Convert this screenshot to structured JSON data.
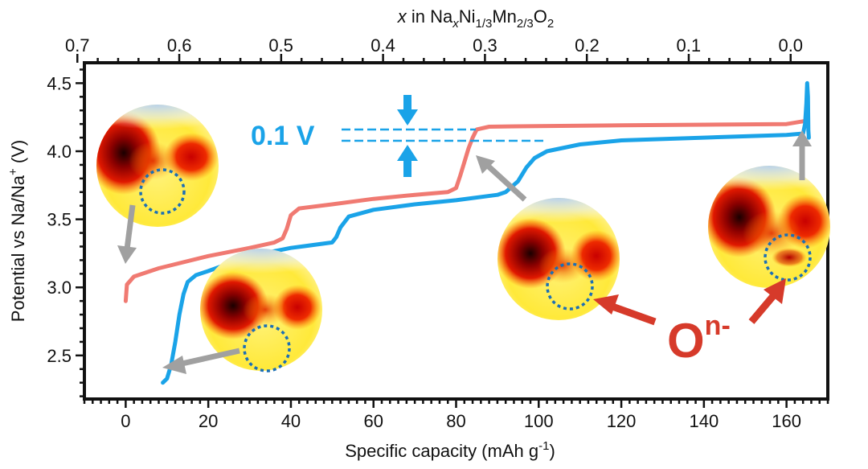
{
  "chart_data": {
    "type": "line",
    "xlabel": "Specific capacity (mAh g",
    "xlabel_sup": "-1",
    "xlabel_tail": ")",
    "ylabel_main": "Potential vs Na/Na",
    "ylabel_sup": "+",
    "ylabel_tail": " (V)",
    "top_label": {
      "x": "x",
      "pre": " in Na",
      "sub_x": "x",
      "ni": "Ni",
      "sub_ni": "1/3",
      "mn": "Mn",
      "sub_mn": "2/3",
      "o": "O",
      "sub_o": "2"
    },
    "xlim": [
      -10,
      170
    ],
    "ylim": [
      2.18,
      4.65
    ],
    "xticks": [
      0,
      20,
      40,
      60,
      80,
      100,
      120,
      140,
      160
    ],
    "yticks": [
      2.5,
      3.0,
      3.5,
      4.0,
      4.5
    ],
    "top_ticks": [
      {
        "label": "0.7",
        "capacity": -11.7
      },
      {
        "label": "0.6",
        "capacity": 13.0
      },
      {
        "label": "0.5",
        "capacity": 37.6
      },
      {
        "label": "0.4",
        "capacity": 62.3
      },
      {
        "label": "0.3",
        "capacity": 87.0
      },
      {
        "label": "0.2",
        "capacity": 111.7
      },
      {
        "label": "0.1",
        "capacity": 136.3
      },
      {
        "label": "0.0",
        "capacity": 161.0
      }
    ],
    "series": [
      {
        "color": "#f07a72",
        "points": [
          [
            0,
            2.9
          ],
          [
            0.3,
            3.02
          ],
          [
            2,
            3.08
          ],
          [
            8,
            3.14
          ],
          [
            20,
            3.23
          ],
          [
            30,
            3.29
          ],
          [
            36,
            3.33
          ],
          [
            38,
            3.36
          ],
          [
            39,
            3.43
          ],
          [
            40,
            3.53
          ],
          [
            42,
            3.58
          ],
          [
            50,
            3.61
          ],
          [
            60,
            3.65
          ],
          [
            70,
            3.68
          ],
          [
            78,
            3.7
          ],
          [
            80,
            3.73
          ],
          [
            81,
            3.82
          ],
          [
            82,
            3.92
          ],
          [
            83,
            4.02
          ],
          [
            84,
            4.1
          ],
          [
            85,
            4.16
          ],
          [
            88,
            4.18
          ],
          [
            100,
            4.185
          ],
          [
            120,
            4.19
          ],
          [
            140,
            4.195
          ],
          [
            160,
            4.2
          ],
          [
            164,
            4.22
          ]
        ]
      },
      {
        "color": "#1aa3e8",
        "points": [
          [
            9,
            2.3
          ],
          [
            10,
            2.33
          ],
          [
            11,
            2.43
          ],
          [
            12,
            2.6
          ],
          [
            13,
            2.8
          ],
          [
            14,
            2.95
          ],
          [
            15,
            3.04
          ],
          [
            17,
            3.09
          ],
          [
            20,
            3.12
          ],
          [
            30,
            3.23
          ],
          [
            40,
            3.29
          ],
          [
            50,
            3.33
          ],
          [
            51,
            3.37
          ],
          [
            52,
            3.44
          ],
          [
            54,
            3.52
          ],
          [
            60,
            3.57
          ],
          [
            70,
            3.61
          ],
          [
            80,
            3.64
          ],
          [
            90,
            3.68
          ],
          [
            92,
            3.7
          ],
          [
            95,
            3.78
          ],
          [
            97,
            3.88
          ],
          [
            99,
            3.95
          ],
          [
            102,
            4.0
          ],
          [
            110,
            4.05
          ],
          [
            120,
            4.08
          ],
          [
            140,
            4.1
          ],
          [
            160,
            4.12
          ],
          [
            164,
            4.13
          ],
          [
            164.5,
            4.2
          ],
          [
            164.8,
            4.35
          ],
          [
            165,
            4.5
          ],
          [
            165.2,
            4.4
          ],
          [
            165.3,
            4.15
          ],
          [
            165.4,
            4.1
          ]
        ]
      }
    ],
    "annotations": {
      "delta_label": "0.1 V",
      "oxygen": "O",
      "oxygen_sup": "n-"
    },
    "colors": {
      "charge": "#f07a72",
      "discharge": "#1aa3e8",
      "gray_arrow": "#a0a0a0",
      "red_arrow": "#d63a2a",
      "dotted_circle": "#1b6fb5"
    }
  }
}
